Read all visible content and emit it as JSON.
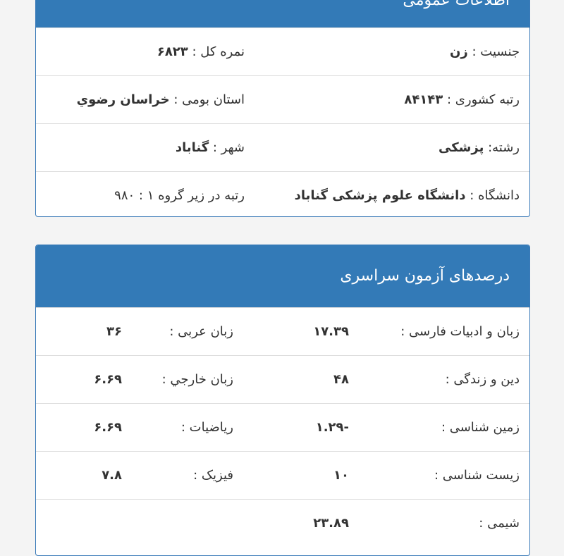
{
  "general": {
    "title": "اطلاعات عمومی",
    "rows": [
      [
        {
          "label": "جنسیت : ",
          "value": "زن"
        },
        {
          "label": "نمره کل : ",
          "value": "۶۸۲۳"
        }
      ],
      [
        {
          "label": "رتبه کشوری : ",
          "value": "۸۴۱۴۳"
        },
        {
          "label": "استان بومی : ",
          "value": "خراسان رضوي"
        }
      ],
      [
        {
          "label": "رشته: ",
          "value": "پزشکی"
        },
        {
          "label": "شهر : ",
          "value": "گناباد"
        }
      ],
      [
        {
          "label": "دانشگاه : ",
          "value": "دانشگاه علوم پزشکی گناباد"
        },
        {
          "label": "رتبه در زیر گروه ۱ : ",
          "value": "۹۸۰"
        }
      ]
    ]
  },
  "exam": {
    "title": "درصدهای آزمون سراسری",
    "rows": [
      [
        {
          "label": "زبان و ادبیات فارسی :",
          "value": "۱۷.۳۹"
        },
        {
          "label": "زبان عربی :",
          "value": "۳۶"
        }
      ],
      [
        {
          "label": "دین و زندگی :",
          "value": "۴۸"
        },
        {
          "label": "زبان خارجي :",
          "value": "۶.۶۹"
        }
      ],
      [
        {
          "label": "زمین شناسی :",
          "value": "-۱.۲۹"
        },
        {
          "label": "ریاضیات :",
          "value": "۶.۶۹"
        }
      ],
      [
        {
          "label": "زیست شناسی :",
          "value": "۱۰"
        },
        {
          "label": "فیزیک :",
          "value": "۷.۸"
        }
      ],
      [
        {
          "label": "شیمی :",
          "value": "۲۳.۸۹"
        }
      ]
    ]
  },
  "colors": {
    "header": "#337ab7",
    "border": "#3a7ab8"
  }
}
